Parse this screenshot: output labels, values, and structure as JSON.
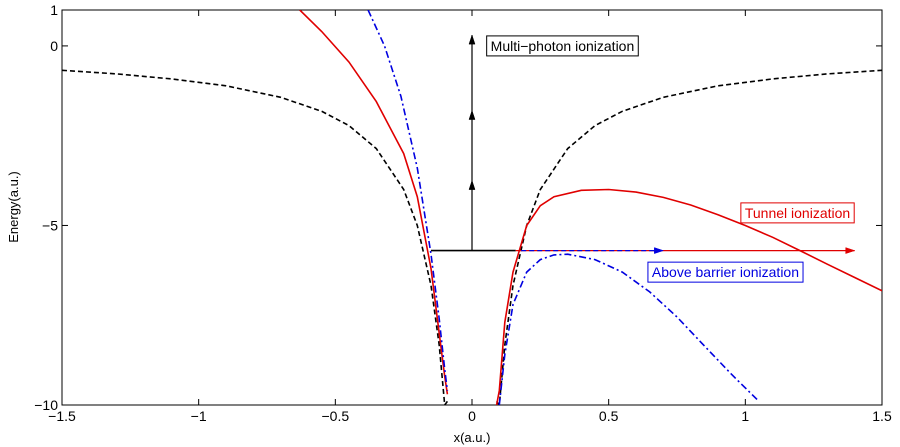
{
  "chart_data": {
    "type": "line",
    "title": "",
    "xlabel": "x(a.u.)",
    "ylabel": "Energy(a.u.)",
    "xlim": [
      -1.5,
      1.5
    ],
    "ylim": [
      -10,
      1
    ],
    "x_ticks": [
      {
        "value": -1.5,
        "label": "−1.5"
      },
      {
        "value": -1,
        "label": "−1"
      },
      {
        "value": -0.5,
        "label": "−0.5"
      },
      {
        "value": 0,
        "label": "0"
      },
      {
        "value": 0.5,
        "label": "0.5"
      },
      {
        "value": 1,
        "label": "1"
      },
      {
        "value": 1.5,
        "label": "1.5"
      }
    ],
    "y_ticks": [
      {
        "value": -10,
        "label": "−10"
      },
      {
        "value": -5,
        "label": "−5"
      },
      {
        "value": 0,
        "label": "0"
      },
      {
        "value": 1,
        "label": "1"
      }
    ],
    "grid": false,
    "series": [
      {
        "style": "dashed",
        "color": "#000000",
        "segments": [
          {
            "x": [
              -1.5,
              -1.3,
              -1.1,
              -0.9,
              -0.7,
              -0.55,
              -0.45,
              -0.35,
              -0.25,
              -0.2,
              -0.15,
              -0.12,
              -0.1,
              -0.09
            ],
            "y": [
              -0.68,
              -0.78,
              -0.92,
              -1.11,
              -1.43,
              -1.82,
              -2.22,
              -2.86,
              -4.0,
              -5.0,
              -6.67,
              -8.33,
              -10.0,
              -9.9
            ]
          },
          {
            "x": [
              0.09,
              0.1,
              0.12,
              0.15,
              0.2,
              0.25,
              0.35,
              0.45,
              0.55,
              0.7,
              0.9,
              1.1,
              1.3,
              1.5
            ],
            "y": [
              -9.9,
              -10.0,
              -8.33,
              -6.67,
              -5.0,
              -4.0,
              -2.86,
              -2.22,
              -1.82,
              -1.43,
              -1.11,
              -0.92,
              -0.78,
              -0.68
            ]
          }
        ]
      },
      {
        "style": "solid",
        "color": "#e00000",
        "segments": [
          {
            "x": [
              -0.63,
              -0.55,
              -0.45,
              -0.35,
              -0.25,
              -0.2,
              -0.15,
              -0.12,
              -0.1,
              -0.09
            ],
            "y": [
              1.0,
              0.4,
              -0.45,
              -1.55,
              -3.0,
              -4.2,
              -6.2,
              -8.0,
              -9.2,
              -9.7
            ]
          },
          {
            "x": [
              0.09,
              0.1,
              0.12,
              0.15,
              0.2,
              0.25,
              0.3,
              0.4,
              0.5,
              0.6,
              0.7,
              0.8,
              0.9,
              1.0,
              1.1,
              1.2,
              1.3,
              1.4,
              1.5
            ],
            "y": [
              -10.0,
              -9.6,
              -7.7,
              -6.3,
              -5.0,
              -4.45,
              -4.2,
              -4.02,
              -4.0,
              -4.07,
              -4.22,
              -4.43,
              -4.7,
              -5.0,
              -5.33,
              -5.7,
              -6.08,
              -6.45,
              -6.82
            ]
          }
        ]
      },
      {
        "style": "dashdot",
        "color": "#0000e0",
        "segments": [
          {
            "x": [
              -0.38,
              -0.32,
              -0.26,
              -0.2,
              -0.15,
              -0.12,
              -0.1,
              -0.09
            ],
            "y": [
              1.0,
              0.0,
              -1.4,
              -3.4,
              -5.8,
              -7.6,
              -9.0,
              -9.6
            ]
          },
          {
            "x": [
              0.1,
              0.12,
              0.15,
              0.2,
              0.25,
              0.3,
              0.35,
              0.45,
              0.55,
              0.65,
              0.75,
              0.85,
              0.95,
              1.05
            ],
            "y": [
              -10.0,
              -8.6,
              -7.2,
              -6.3,
              -5.95,
              -5.82,
              -5.8,
              -5.95,
              -6.3,
              -6.85,
              -7.55,
              -8.35,
              -9.15,
              -9.9
            ]
          }
        ]
      }
    ],
    "energy_level": {
      "x": [
        -0.15,
        0.16
      ],
      "y": -5.7,
      "color": "#000000"
    },
    "arrows": [
      {
        "name": "multiphoton-arrow-1",
        "from": [
          0.0,
          -5.7
        ],
        "to": [
          0.0,
          -3.75
        ],
        "color": "#000000"
      },
      {
        "name": "multiphoton-arrow-2",
        "from": [
          0.0,
          -3.75
        ],
        "to": [
          0.0,
          -1.8
        ],
        "color": "#000000"
      },
      {
        "name": "multiphoton-arrow-3",
        "from": [
          0.0,
          -1.8
        ],
        "to": [
          0.0,
          0.3
        ],
        "color": "#000000"
      },
      {
        "name": "tunnel-arrow",
        "from": [
          0.16,
          -5.7
        ],
        "to": [
          1.4,
          -5.7
        ],
        "color": "#e00000"
      },
      {
        "name": "above-barrier-arrow",
        "from": [
          0.18,
          -5.7
        ],
        "to": [
          0.7,
          -5.7
        ],
        "color": "#0000e0",
        "style": "dashed"
      }
    ],
    "annotations": [
      {
        "name": "multiphoton-label",
        "text": "Multi−photon ionization",
        "x": 0.05,
        "y": 0.0,
        "color": "#000000",
        "border": "#000000"
      },
      {
        "name": "tunnel-label",
        "text": "Tunnel ionization",
        "x": 0.98,
        "y": -4.65,
        "color": "#e00000",
        "border": "#e00000"
      },
      {
        "name": "above-barrier-label",
        "text": "Above barrier ionization",
        "x": 0.64,
        "y": -6.3,
        "color": "#0000e0",
        "border": "#0000e0"
      }
    ]
  }
}
